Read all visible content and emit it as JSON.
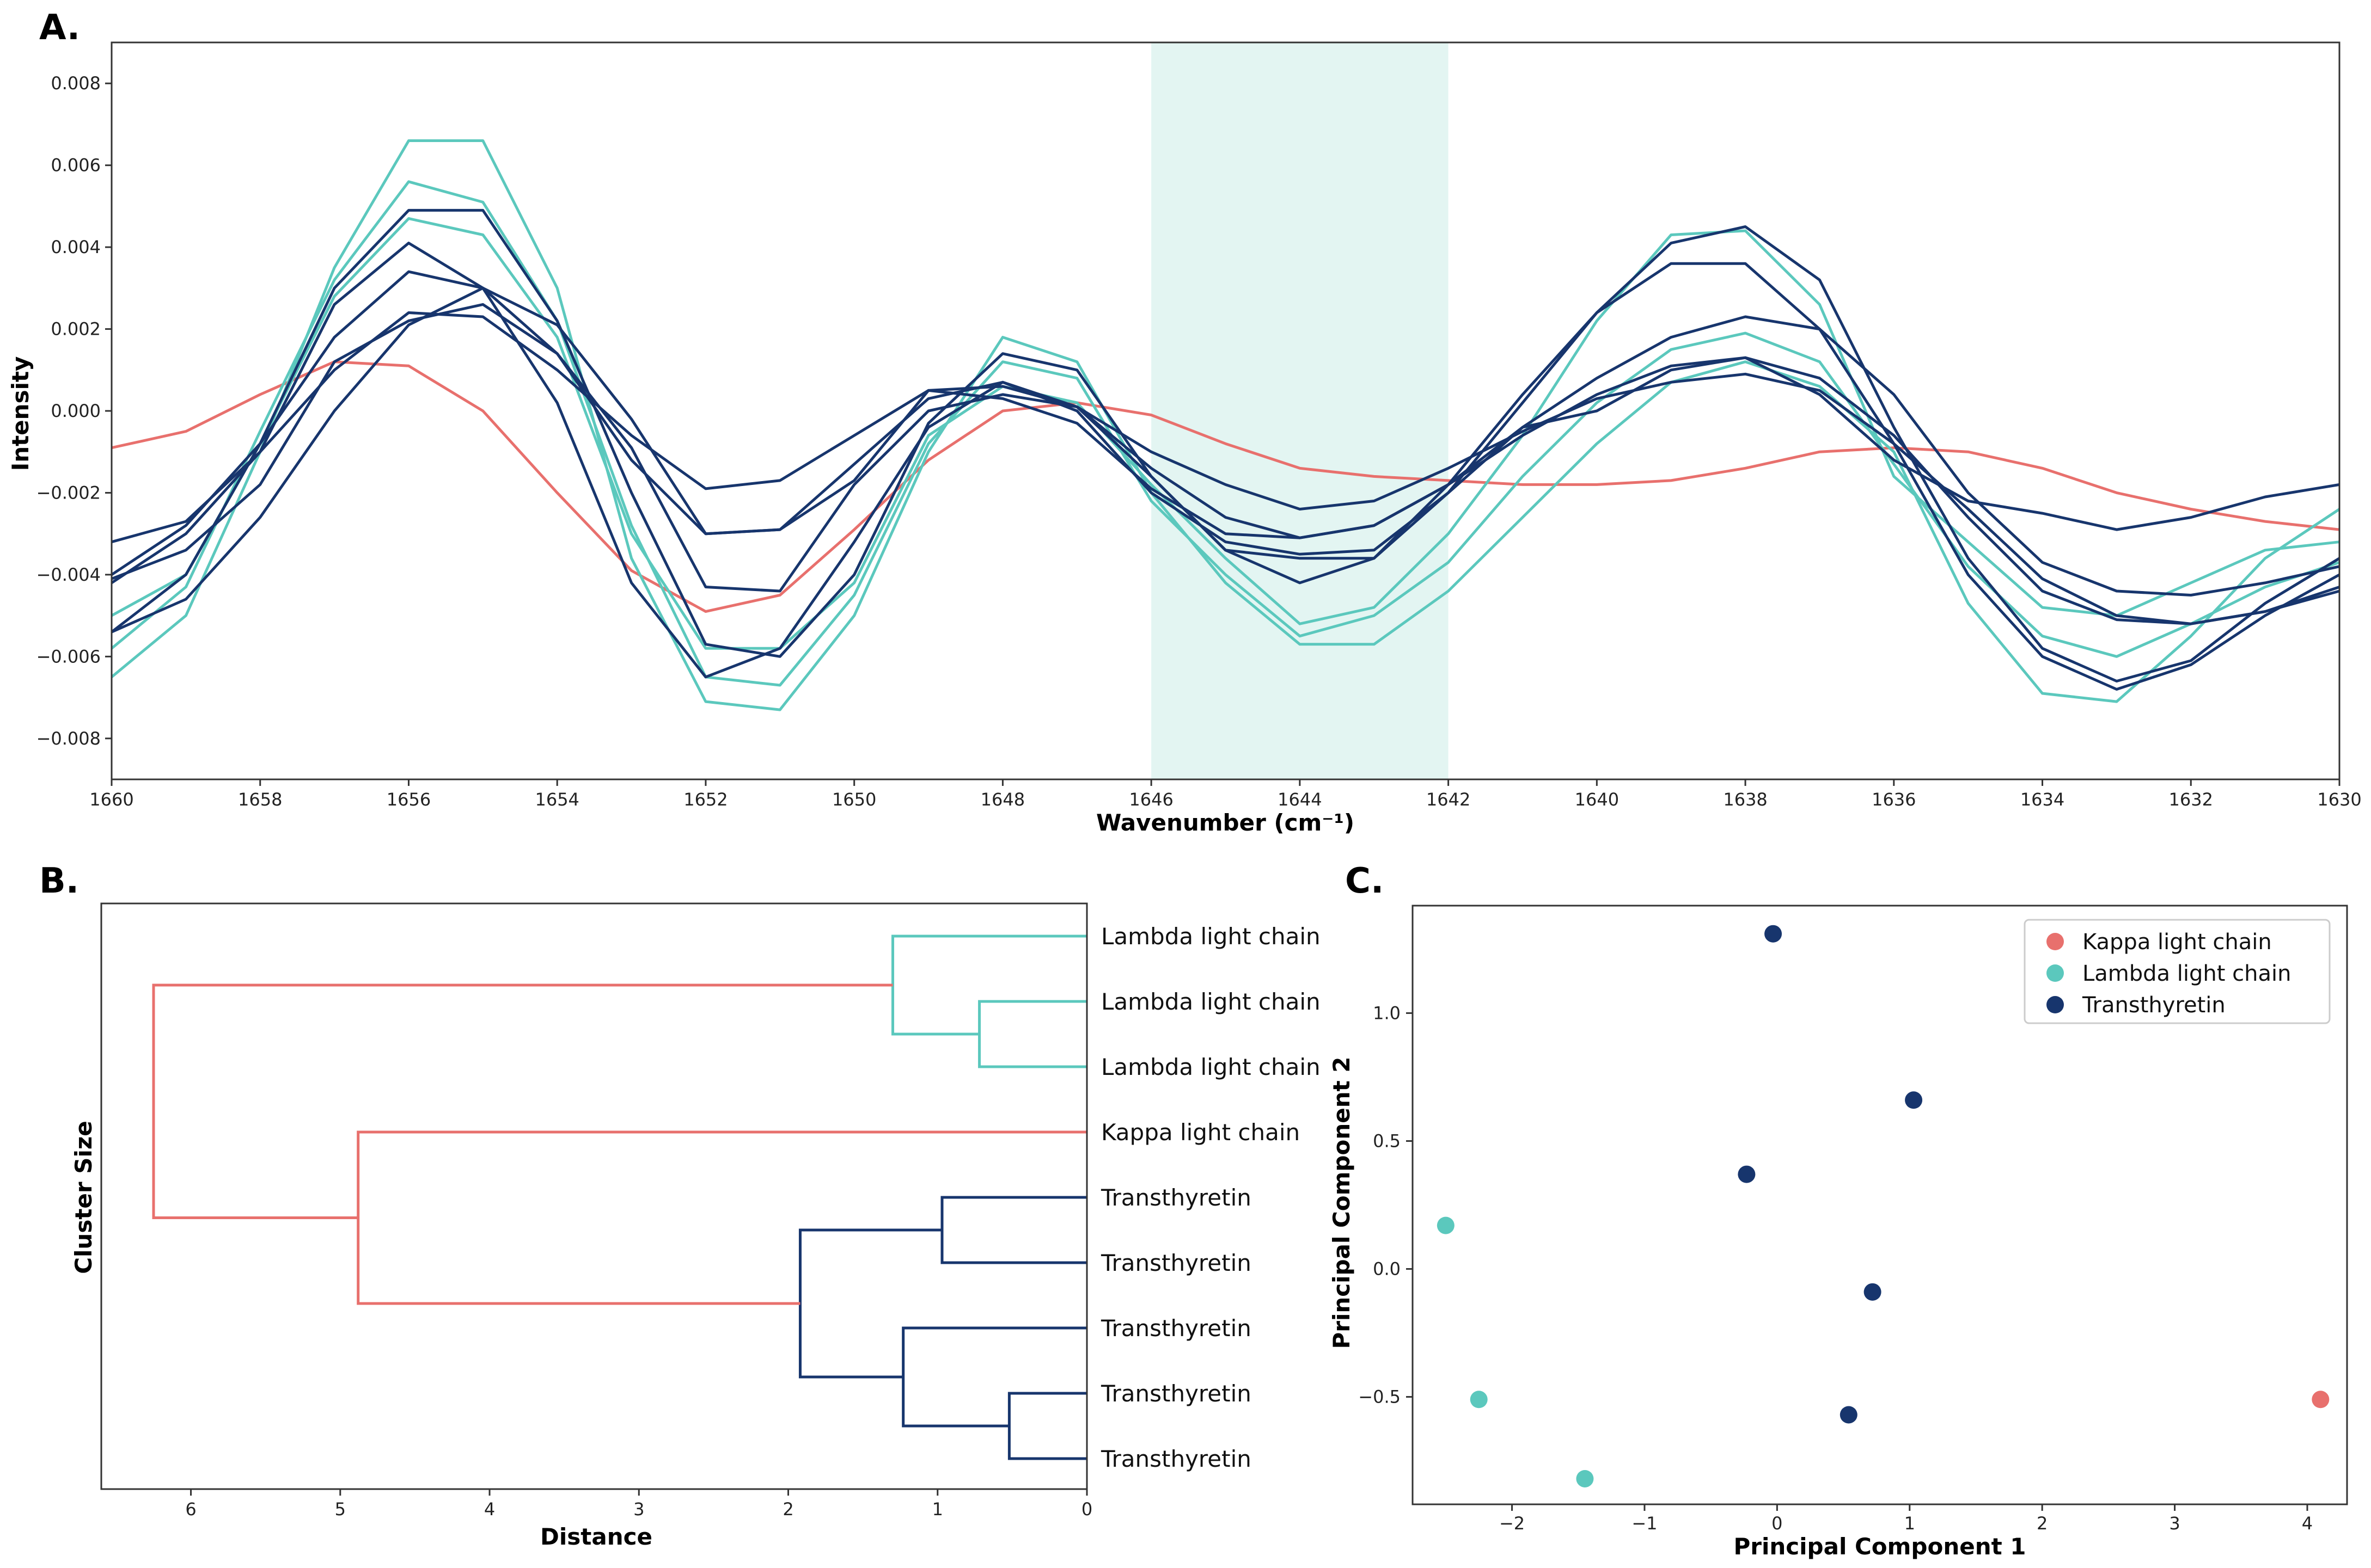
{
  "colors": {
    "kappa": "#e8706d",
    "lambda": "#5bc8bd",
    "transthyretin": "#17356d",
    "highlight": "#e3f5f2"
  },
  "chart_data": [
    {
      "panel": "A.",
      "type": "line",
      "title": "",
      "xlabel": "Wavenumber (cm⁻¹)",
      "ylabel": "Intensity",
      "xlim": [
        1660,
        1630
      ],
      "ylim": [
        -0.009,
        0.009
      ],
      "xticks": [
        1660,
        1658,
        1656,
        1654,
        1652,
        1650,
        1648,
        1646,
        1644,
        1642,
        1640,
        1638,
        1636,
        1634,
        1632,
        1630
      ],
      "yticks": [
        -0.008,
        -0.006,
        -0.004,
        -0.002,
        0.0,
        0.002,
        0.004,
        0.006,
        0.008
      ],
      "highlight_range": [
        1646,
        1642
      ],
      "x": [
        1660,
        1659,
        1658,
        1657,
        1656,
        1655,
        1654,
        1653,
        1652,
        1651,
        1650,
        1649,
        1648,
        1647,
        1646,
        1645,
        1644,
        1643,
        1642,
        1641,
        1640,
        1639,
        1638,
        1637,
        1636,
        1635,
        1634,
        1633,
        1632,
        1631,
        1630
      ],
      "series": [
        {
          "name": "Kappa light chain",
          "group": "kappa",
          "values": [
            -0.0009,
            -0.0005,
            0.0004,
            0.0012,
            0.0011,
            0.0,
            -0.002,
            -0.0039,
            -0.0049,
            -0.0045,
            -0.0029,
            -0.0012,
            0.0,
            0.0002,
            -0.0001,
            -0.0008,
            -0.0014,
            -0.0016,
            -0.0017,
            -0.0018,
            -0.0018,
            -0.0017,
            -0.0014,
            -0.001,
            -0.0009,
            -0.001,
            -0.0014,
            -0.002,
            -0.0024,
            -0.0027,
            -0.0029
          ]
        },
        {
          "name": "Lambda light chain",
          "group": "lambda",
          "values": [
            -0.0065,
            -0.005,
            -0.001,
            0.0035,
            0.0066,
            0.0066,
            0.003,
            -0.0036,
            -0.0071,
            -0.0073,
            -0.005,
            -0.001,
            0.0018,
            0.0012,
            -0.002,
            -0.0042,
            -0.0057,
            -0.0057,
            -0.0044,
            -0.0026,
            -0.0008,
            0.0007,
            0.0012,
            0.0006,
            -0.001,
            -0.0047,
            -0.0069,
            -0.0071,
            -0.0055,
            -0.0036,
            -0.0024
          ]
        },
        {
          "name": "Lambda light chain",
          "group": "lambda",
          "values": [
            -0.0058,
            -0.0043,
            -0.0005,
            0.0032,
            0.0056,
            0.0051,
            0.0022,
            -0.0028,
            -0.0065,
            -0.0067,
            -0.0045,
            -0.0008,
            0.0012,
            0.0008,
            -0.0022,
            -0.004,
            -0.0055,
            -0.005,
            -0.0037,
            -0.0016,
            0.0002,
            0.0015,
            0.0019,
            0.0012,
            -0.0013,
            -0.0038,
            -0.0055,
            -0.006,
            -0.0052,
            -0.0043,
            -0.0037
          ]
        },
        {
          "name": "Lambda light chain",
          "group": "lambda",
          "values": [
            -0.005,
            -0.004,
            -0.0008,
            0.0028,
            0.0047,
            0.0043,
            0.0018,
            -0.003,
            -0.0058,
            -0.0058,
            -0.0042,
            -0.0006,
            0.0006,
            0.0002,
            -0.0018,
            -0.0036,
            -0.0052,
            -0.0048,
            -0.003,
            -0.0006,
            0.0022,
            0.0043,
            0.0044,
            0.0026,
            -0.0016,
            -0.0032,
            -0.0048,
            -0.005,
            -0.0042,
            -0.0034,
            -0.0032
          ]
        },
        {
          "name": "Transthyretin",
          "group": "transthyretin",
          "values": [
            -0.004,
            -0.0028,
            -0.0008,
            0.003,
            0.0049,
            0.0049,
            0.0022,
            -0.002,
            -0.0057,
            -0.006,
            -0.004,
            -0.0003,
            0.0014,
            0.001,
            -0.0016,
            -0.0034,
            -0.0036,
            -0.0036,
            -0.002,
            0.0002,
            0.0024,
            0.0041,
            0.0045,
            0.0032,
            -0.0004,
            -0.0036,
            -0.0058,
            -0.0066,
            -0.0061,
            -0.0047,
            -0.0036
          ]
        },
        {
          "name": "Transthyretin",
          "group": "transthyretin",
          "values": [
            -0.0042,
            -0.003,
            -0.001,
            0.0026,
            0.0041,
            0.003,
            0.0002,
            -0.0042,
            -0.0065,
            -0.0058,
            -0.0032,
            -0.0004,
            0.0007,
            0.0001,
            -0.0016,
            -0.0034,
            -0.0042,
            -0.0036,
            -0.0018,
            0.0004,
            0.0024,
            0.0036,
            0.0036,
            0.002,
            -0.0008,
            -0.004,
            -0.006,
            -0.0068,
            -0.0062,
            -0.005,
            -0.004
          ]
        },
        {
          "name": "Transthyretin",
          "group": "transthyretin",
          "values": [
            -0.0054,
            -0.004,
            -0.0008,
            0.0018,
            0.0034,
            0.003,
            0.0014,
            -0.0012,
            -0.003,
            -0.0029,
            -0.0013,
            0.0003,
            0.0007,
            0.0,
            -0.002,
            -0.0032,
            -0.0035,
            -0.0034,
            -0.002,
            -0.0004,
            0.0008,
            0.0018,
            0.0023,
            0.002,
            0.0004,
            -0.002,
            -0.0037,
            -0.0044,
            -0.0045,
            -0.0042,
            -0.0038
          ]
        },
        {
          "name": "Transthyretin",
          "group": "transthyretin",
          "values": [
            -0.0032,
            -0.0027,
            -0.001,
            0.001,
            0.0024,
            0.0023,
            0.001,
            -0.0006,
            -0.0019,
            -0.0017,
            -0.0006,
            0.0005,
            0.0006,
            0.0001,
            -0.0014,
            -0.0026,
            -0.0031,
            -0.0028,
            -0.0018,
            -0.0006,
            0.0004,
            0.0011,
            0.0013,
            0.0008,
            -0.0006,
            -0.0026,
            -0.0044,
            -0.0051,
            -0.0052,
            -0.0049,
            -0.0043
          ]
        },
        {
          "name": "Transthyretin",
          "group": "transthyretin",
          "values": [
            -0.0041,
            -0.0034,
            -0.0018,
            0.0012,
            0.0022,
            0.0026,
            0.0014,
            -0.0009,
            -0.0043,
            -0.0044,
            -0.0018,
            0.0,
            0.0004,
            0.0001,
            -0.001,
            -0.0018,
            -0.0024,
            -0.0022,
            -0.0014,
            -0.0005,
            0.0003,
            0.0007,
            0.0009,
            0.0005,
            -0.0008,
            -0.0024,
            -0.0041,
            -0.005,
            -0.0052,
            -0.0049,
            -0.0044
          ]
        },
        {
          "name": "Transthyretin",
          "group": "transthyretin",
          "values": [
            -0.0054,
            -0.0046,
            -0.0026,
            0.0,
            0.0021,
            0.003,
            0.0021,
            -0.0002,
            -0.003,
            -0.0029,
            -0.0017,
            0.0005,
            0.0003,
            -0.0003,
            -0.0019,
            -0.003,
            -0.0031,
            -0.0028,
            -0.0018,
            -0.0004,
            0.0,
            0.001,
            0.0013,
            0.0004,
            -0.0012,
            -0.0022,
            -0.0025,
            -0.0029,
            -0.0026,
            -0.0021,
            -0.0018
          ]
        }
      ]
    },
    {
      "panel": "B.",
      "type": "dendrogram",
      "title": "",
      "xlabel": "Distance",
      "ylabel": "Cluster Size",
      "xlim": [
        6.6,
        0
      ],
      "xticks": [
        6,
        5,
        4,
        3,
        2,
        1,
        0
      ],
      "leaves": [
        "Lambda light chain",
        "Lambda light chain",
        "Lambda light chain",
        "Kappa light chain",
        "Transthyretin",
        "Transthyretin",
        "Transthyretin",
        "Transthyretin",
        "Transthyretin"
      ],
      "merges": [
        {
          "height": 0.72,
          "children": [
            1,
            2
          ],
          "group": "lambda"
        },
        {
          "height": 1.3,
          "children": [
            0,
            "m0"
          ],
          "group": "lambda"
        },
        {
          "height": 0.52,
          "children": [
            7,
            8
          ],
          "group": "transthyretin"
        },
        {
          "height": 1.23,
          "children": [
            6,
            "m2"
          ],
          "group": "transthyretin"
        },
        {
          "height": 0.97,
          "children": [
            4,
            5
          ],
          "group": "transthyretin"
        },
        {
          "height": 1.92,
          "children": [
            "m4",
            "m3"
          ],
          "group": "transthyretin"
        },
        {
          "height": 4.88,
          "children": [
            3,
            "m5"
          ],
          "group": "kappa"
        },
        {
          "height": 6.25,
          "children": [
            "m1",
            "m6"
          ],
          "group": "kappa"
        }
      ]
    },
    {
      "panel": "C.",
      "type": "scatter",
      "title": "",
      "xlabel": "Principal Component 1",
      "ylabel": "Principal Component 2",
      "xlim": [
        -2.75,
        4.3
      ],
      "ylim": [
        -0.92,
        1.42
      ],
      "xticks": [
        -2,
        -1,
        0,
        1,
        2,
        3,
        4
      ],
      "yticks": [
        -0.5,
        0.0,
        0.5,
        1.0
      ],
      "legend": [
        "Kappa light chain",
        "Lambda light chain",
        "Transthyretin"
      ],
      "legend_position": "top-right",
      "series": [
        {
          "name": "Kappa light chain",
          "group": "kappa",
          "points": [
            [
              4.1,
              -0.51
            ]
          ]
        },
        {
          "name": "Lambda light chain",
          "group": "lambda",
          "points": [
            [
              -2.5,
              0.17
            ],
            [
              -2.25,
              -0.51
            ],
            [
              -1.45,
              -0.82
            ]
          ]
        },
        {
          "name": "Transthyretin",
          "group": "transthyretin",
          "points": [
            [
              -0.03,
              1.31
            ],
            [
              1.03,
              0.66
            ],
            [
              -0.23,
              0.37
            ],
            [
              0.72,
              -0.09
            ],
            [
              0.54,
              -0.57
            ]
          ]
        }
      ]
    }
  ]
}
